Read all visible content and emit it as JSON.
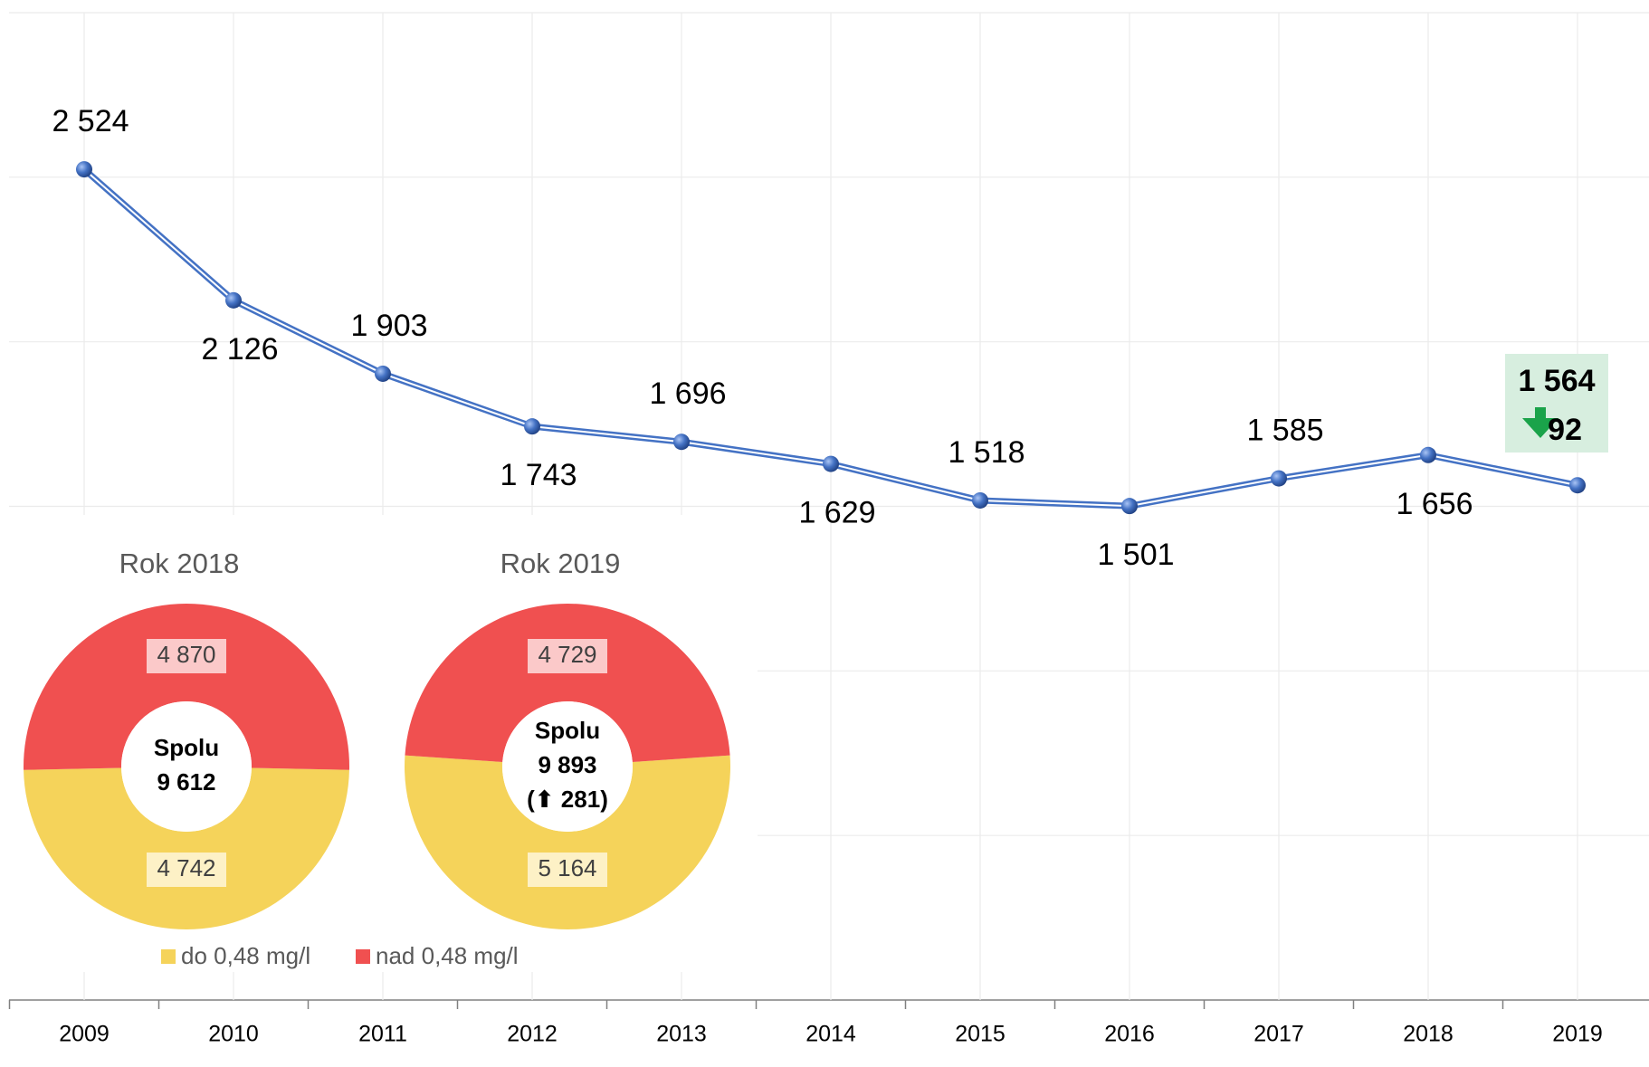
{
  "chart_data": [
    {
      "type": "line",
      "categories": [
        "2009",
        "2010",
        "2011",
        "2012",
        "2013",
        "2014",
        "2015",
        "2016",
        "2017",
        "2018",
        "2019"
      ],
      "series": [
        {
          "color": "#4472c4",
          "values": [
            2524,
            2126,
            1903,
            1743,
            1696,
            1629,
            1518,
            1501,
            1585,
            1656,
            1564
          ],
          "value_labels": [
            "2 524",
            "2 126",
            "1 903",
            "1 743",
            "1 696",
            "1 629",
            "1 518",
            "1 501",
            "1 585",
            "1 656",
            "1 564"
          ]
        }
      ],
      "ylim": [
        0,
        3000
      ],
      "yticks": [
        0,
        500,
        1000,
        1500,
        2000,
        2500,
        3000
      ],
      "grid": true,
      "annotation": {
        "change": 92
      }
    },
    {
      "type": "donut",
      "title": "Rok 2018",
      "values": [
        4742,
        4870
      ],
      "value_labels": [
        "4 742",
        "4 870"
      ],
      "center_title": "Spolu",
      "total": 9612,
      "total_label": "9 612"
    },
    {
      "type": "donut",
      "title": "Rok 2019",
      "values": [
        5164,
        4729
      ],
      "value_labels": [
        "5 164",
        "4 729"
      ],
      "center_title": "Spolu",
      "total": 9893,
      "total_label": "9 893",
      "change": 281,
      "change_label": "(⬆ 281)"
    }
  ],
  "legend": [
    {
      "name": "do 0,48 mg/l",
      "color": "#f5d35a"
    },
    {
      "name": "nad 0,48 mg/l",
      "color": "#f05050"
    }
  ]
}
